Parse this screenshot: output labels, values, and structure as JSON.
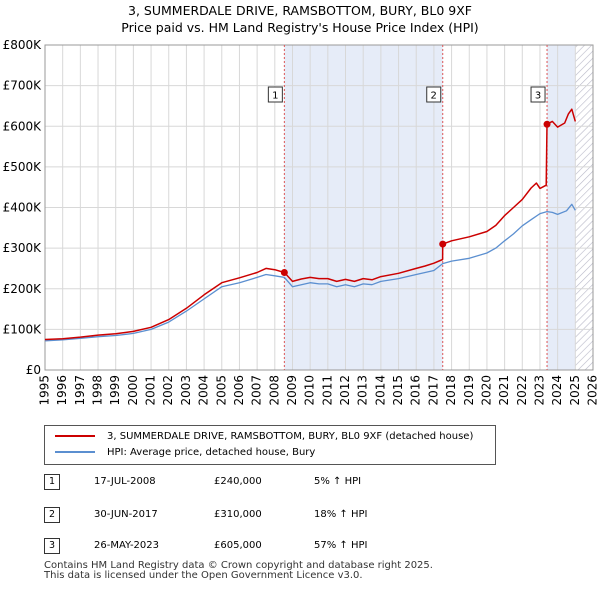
{
  "title_line1": "3, SUMMERDALE DRIVE, RAMSBOTTOM, BURY, BL0 9XF",
  "title_line2": "Price paid vs. HM Land Registry's House Price Index (HPI)",
  "colors": {
    "property": "#cc0000",
    "hpi": "#5b8fd0",
    "shade": "#e6ecf8",
    "future_hatch": "#b8b8c8",
    "grid": "#d8d8d8"
  },
  "legend": {
    "property_label": "3, SUMMERDALE DRIVE, RAMSBOTTOM, BURY, BL0 9XF (detached house)",
    "hpi_label": "HPI: Average price, detached house, Bury"
  },
  "transactions": [
    {
      "num": "1",
      "date": "17-JUL-2008",
      "price": "£240,000",
      "hpi_change": "5% ↑ HPI"
    },
    {
      "num": "2",
      "date": "30-JUN-2017",
      "price": "£310,000",
      "hpi_change": "18% ↑ HPI"
    },
    {
      "num": "3",
      "date": "26-MAY-2023",
      "price": "£605,000",
      "hpi_change": "57% ↑ HPI"
    }
  ],
  "footer": {
    "line1": "Contains HM Land Registry data © Crown copyright and database right 2025.",
    "line2": "This data is licensed under the Open Government Licence v3.0."
  },
  "chart_data": {
    "type": "line",
    "title": "3, SUMMERDALE DRIVE, RAMSBOTTOM, BURY, BL0 9XF — Price paid vs. HM Land Registry's House Price Index (HPI)",
    "xlabel": "",
    "ylabel": "",
    "xlim": [
      1995,
      2026
    ],
    "ylim": [
      0,
      800000
    ],
    "x_ticks": [
      1995,
      1996,
      1997,
      1998,
      1999,
      2000,
      2001,
      2002,
      2003,
      2004,
      2005,
      2006,
      2007,
      2008,
      2009,
      2010,
      2011,
      2012,
      2013,
      2014,
      2015,
      2016,
      2017,
      2018,
      2019,
      2020,
      2021,
      2022,
      2023,
      2024,
      2025,
      2026
    ],
    "y_ticks": [
      {
        "value": 0,
        "label": "£0"
      },
      {
        "value": 100000,
        "label": "£100K"
      },
      {
        "value": 200000,
        "label": "£200K"
      },
      {
        "value": 300000,
        "label": "£300K"
      },
      {
        "value": 400000,
        "label": "£400K"
      },
      {
        "value": 500000,
        "label": "£500K"
      },
      {
        "value": 600000,
        "label": "£600K"
      },
      {
        "value": 700000,
        "label": "£700K"
      },
      {
        "value": 800000,
        "label": "£800K"
      }
    ],
    "grid": true,
    "sale_markers": [
      {
        "label": "1",
        "x": 2008.54,
        "y": 240000
      },
      {
        "label": "2",
        "x": 2017.5,
        "y": 310000
      },
      {
        "label": "3",
        "x": 2023.4,
        "y": 605000
      }
    ],
    "shaded_ranges": [
      [
        2008.54,
        2017.5
      ],
      [
        2023.4,
        2025.0
      ]
    ],
    "future_start": 2025.0,
    "series": [
      {
        "name": "HPI: Average price, detached house, Bury",
        "x": [
          1995,
          1996,
          1997,
          1998,
          1999,
          2000,
          2001,
          2002,
          2003,
          2004,
          2005,
          2006,
          2007,
          2007.5,
          2008,
          2008.54,
          2009,
          2009.5,
          2010,
          2010.5,
          2011,
          2011.5,
          2012,
          2012.5,
          2013,
          2013.5,
          2014,
          2015,
          2016,
          2016.5,
          2017,
          2017.5,
          2018,
          2019,
          2020,
          2020.5,
          2021,
          2021.5,
          2022,
          2022.5,
          2023,
          2023.4,
          2023.7,
          2024,
          2024.5,
          2024.8,
          2025
        ],
        "y": [
          72000,
          74000,
          78000,
          82000,
          85000,
          90000,
          100000,
          118000,
          145000,
          175000,
          205000,
          215000,
          228000,
          235000,
          232000,
          228000,
          205000,
          210000,
          215000,
          212000,
          212000,
          205000,
          210000,
          205000,
          212000,
          210000,
          218000,
          225000,
          235000,
          240000,
          245000,
          262000,
          268000,
          275000,
          288000,
          300000,
          318000,
          335000,
          355000,
          370000,
          385000,
          390000,
          388000,
          383000,
          392000,
          408000,
          393000
        ]
      },
      {
        "name": "3, SUMMERDALE DRIVE, RAMSBOTTOM, BURY, BL0 9XF (detached house)",
        "x": [
          1995,
          1996,
          1997,
          1998,
          1999,
          2000,
          2001,
          2002,
          2003,
          2004,
          2005,
          2006,
          2007,
          2007.5,
          2008,
          2008.54,
          2009,
          2009.5,
          2010,
          2010.5,
          2011,
          2011.5,
          2012,
          2012.5,
          2013,
          2013.5,
          2014,
          2015,
          2016,
          2016.5,
          2017,
          2017.49,
          2017.5,
          2018,
          2019,
          2020,
          2020.5,
          2021,
          2021.5,
          2022,
          2022.5,
          2022.8,
          2023,
          2023.35,
          2023.4,
          2023.7,
          2024,
          2024.4,
          2024.6,
          2024.8,
          2025
        ],
        "y": [
          75000,
          77000,
          81000,
          86000,
          89000,
          95000,
          105000,
          124000,
          152000,
          185000,
          215000,
          227000,
          240000,
          250000,
          247000,
          240000,
          218000,
          224000,
          228000,
          225000,
          225000,
          218000,
          223000,
          218000,
          225000,
          222000,
          230000,
          238000,
          250000,
          256000,
          263000,
          272000,
          310000,
          318000,
          328000,
          341000,
          356000,
          380000,
          400000,
          420000,
          448000,
          460000,
          447000,
          455000,
          605000,
          612000,
          598000,
          608000,
          630000,
          642000,
          612000
        ]
      }
    ]
  }
}
